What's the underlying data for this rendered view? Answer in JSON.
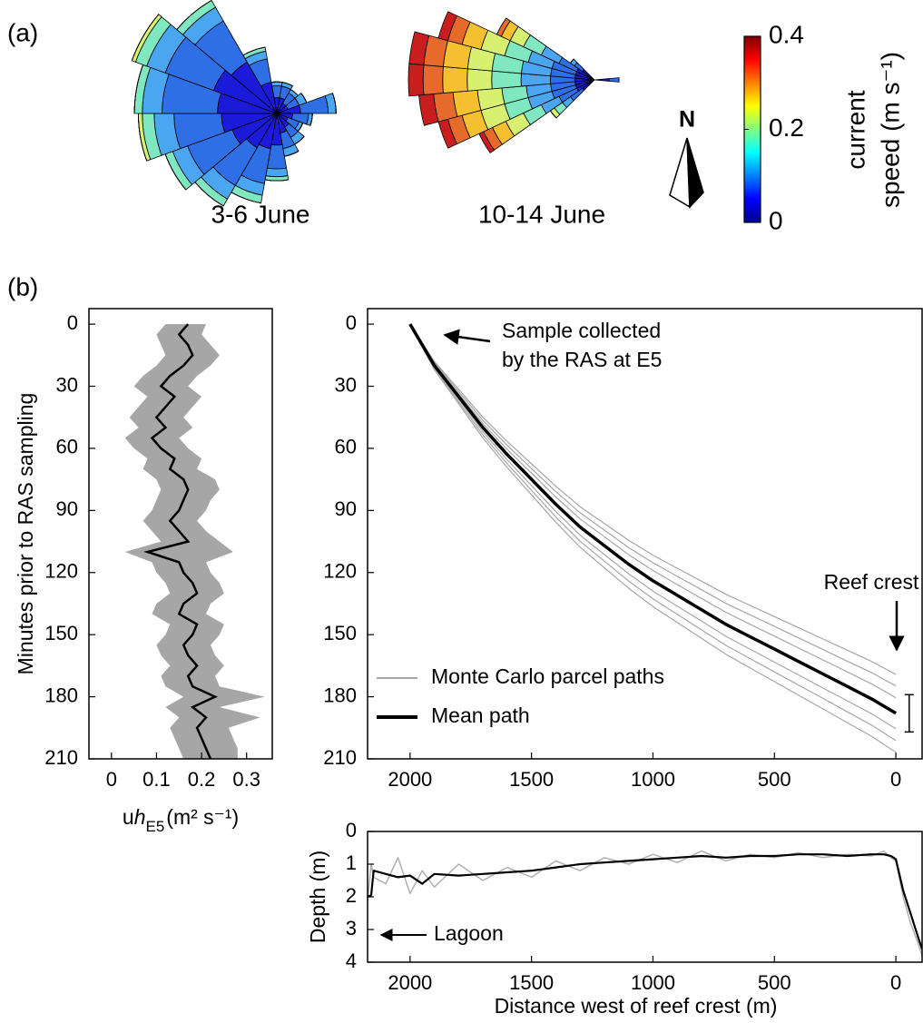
{
  "chart_data": [
    {
      "type": "rose",
      "panel_label": "(a)",
      "north_label": "N",
      "speed_bins": [
        0,
        0.05,
        0.1,
        0.15,
        0.2,
        0.25,
        0.3,
        0.35,
        0.4
      ],
      "colors": [
        "#1a1ad8",
        "#2f6fe6",
        "#4aa6f0",
        "#7fe8c0",
        "#d8f070",
        "#f5c030",
        "#e66a2a",
        "#c81e1e"
      ],
      "roses": [
        {
          "title": "3-6 June",
          "directions": [
            0,
            20,
            40,
            60,
            80,
            100,
            120,
            140,
            160,
            180,
            200,
            220,
            240,
            260,
            280,
            300,
            320,
            340
          ],
          "frequency": [
            [
              4,
              3,
              1,
              0,
              0,
              0,
              0,
              0
            ],
            [
              4,
              3,
              1,
              0,
              0,
              0,
              0,
              0
            ],
            [
              3,
              3,
              1,
              0,
              0,
              0,
              0,
              0
            ],
            [
              3,
              3,
              2,
              0,
              0,
              0,
              0,
              0
            ],
            [
              6,
              7,
              2,
              0,
              0,
              0,
              0,
              0
            ],
            [
              4,
              4,
              1,
              0,
              0,
              0,
              0,
              0
            ],
            [
              3,
              3,
              1,
              0,
              0,
              0,
              0,
              0
            ],
            [
              4,
              3,
              2,
              0,
              0,
              0,
              0,
              0
            ],
            [
              5,
              4,
              2,
              0,
              0,
              0,
              0,
              0
            ],
            [
              8,
              6,
              2,
              1,
              0,
              0,
              0,
              0
            ],
            [
              9,
              9,
              3,
              2,
              0,
              0,
              0,
              0
            ],
            [
              10,
              11,
              4,
              2,
              0,
              0,
              0,
              0
            ],
            [
              12,
              12,
              4,
              2,
              0,
              0,
              0,
              0
            ],
            [
              14,
              12,
              5,
              3,
              1,
              0,
              0,
              0
            ],
            [
              15,
              14,
              5,
              2,
              0,
              0,
              0,
              0
            ],
            [
              17,
              13,
              5,
              3,
              1,
              0,
              0,
              0
            ],
            [
              15,
              12,
              4,
              2,
              0,
              0,
              0,
              0
            ],
            [
              8,
              6,
              2,
              1,
              0,
              0,
              0,
              0
            ]
          ]
        },
        {
          "title": "10-14 June",
          "directions": [
            230,
            240,
            250,
            260,
            270,
            280,
            290,
            300,
            310,
            90
          ],
          "frequency": [
            [
              3,
              3,
              2,
              2,
              1,
              0,
              0,
              0
            ],
            [
              4,
              4,
              4,
              4,
              4,
              3,
              2,
              1
            ],
            [
              4,
              5,
              5,
              5,
              5,
              4,
              3,
              2
            ],
            [
              4,
              5,
              5,
              5,
              5,
              5,
              4,
              3
            ],
            [
              4,
              5,
              6,
              6,
              5,
              5,
              4,
              3
            ],
            [
              4,
              5,
              6,
              6,
              5,
              5,
              4,
              3
            ],
            [
              4,
              5,
              5,
              5,
              5,
              4,
              3,
              2
            ],
            [
              4,
              4,
              4,
              4,
              3,
              2,
              1,
              0
            ],
            [
              3,
              2,
              1,
              0,
              0,
              0,
              0,
              0
            ],
            [
              3,
              2,
              0,
              0,
              0,
              0,
              0,
              0
            ]
          ]
        }
      ],
      "colorbar": {
        "clim": [
          0,
          0.4
        ],
        "ticks": [
          0,
          0.2,
          0.4
        ],
        "label": [
          "current",
          "speed (m s⁻¹)"
        ],
        "colormap": [
          "#00008f",
          "#0000ff",
          "#0080ff",
          "#00ffff",
          "#80ff80",
          "#ffff00",
          "#ff8000",
          "#ff0000",
          "#800000"
        ]
      }
    },
    {
      "type": "band_line",
      "panel_label": "(b)",
      "ylabel": "Minutes prior to RAS sampling",
      "xlabel": [
        "u",
        "h",
        "E5",
        "(m² s⁻¹)"
      ],
      "xlim": [
        -0.05,
        0.357
      ],
      "xticks": [
        0,
        0.1,
        0.2,
        0.3
      ],
      "ylim": [
        210,
        -7.5
      ],
      "yticks": [
        0,
        30,
        60,
        90,
        120,
        150,
        180,
        210
      ],
      "y": [
        0,
        5,
        10,
        15,
        20,
        25,
        30,
        35,
        40,
        45,
        50,
        55,
        60,
        65,
        70,
        75,
        80,
        85,
        90,
        95,
        100,
        105,
        110,
        115,
        120,
        125,
        130,
        135,
        140,
        145,
        150,
        155,
        160,
        165,
        170,
        175,
        180,
        185,
        190,
        195,
        200,
        205,
        210
      ],
      "values": [
        0.17,
        0.15,
        0.17,
        0.18,
        0.16,
        0.13,
        0.11,
        0.14,
        0.12,
        0.1,
        0.12,
        0.09,
        0.11,
        0.14,
        0.13,
        0.16,
        0.17,
        0.16,
        0.15,
        0.13,
        0.15,
        0.17,
        0.08,
        0.15,
        0.16,
        0.18,
        0.19,
        0.16,
        0.15,
        0.19,
        0.18,
        0.16,
        0.17,
        0.19,
        0.17,
        0.18,
        0.23,
        0.18,
        0.21,
        0.19,
        0.2,
        0.21,
        0.22
      ],
      "color": "#000000",
      "band": {
        "color": "#a6a6a6",
        "lower": [
          0.12,
          0.1,
          0.11,
          0.12,
          0.1,
          0.07,
          0.05,
          0.08,
          0.06,
          0.04,
          0.06,
          0.03,
          0.05,
          0.08,
          0.07,
          0.1,
          0.11,
          0.1,
          0.09,
          0.07,
          0.09,
          0.11,
          0.03,
          0.09,
          0.1,
          0.12,
          0.13,
          0.1,
          0.09,
          0.13,
          0.12,
          0.1,
          0.11,
          0.13,
          0.11,
          0.12,
          0.16,
          0.12,
          0.15,
          0.13,
          0.14,
          0.15,
          0.16
        ],
        "upper": [
          0.21,
          0.2,
          0.22,
          0.24,
          0.22,
          0.19,
          0.17,
          0.2,
          0.18,
          0.16,
          0.18,
          0.15,
          0.17,
          0.2,
          0.19,
          0.23,
          0.24,
          0.22,
          0.21,
          0.19,
          0.21,
          0.24,
          0.27,
          0.21,
          0.22,
          0.24,
          0.25,
          0.22,
          0.21,
          0.25,
          0.24,
          0.22,
          0.23,
          0.25,
          0.23,
          0.24,
          0.34,
          0.24,
          0.33,
          0.26,
          0.27,
          0.28,
          0.28
        ]
      }
    },
    {
      "type": "line",
      "xlim": [
        2175,
        -108
      ],
      "xticks": [
        2000,
        1500,
        1000,
        500,
        0
      ],
      "ylim": [
        210,
        -7.5
      ],
      "yticks": [
        0,
        30,
        60,
        90,
        120,
        150,
        180,
        210
      ],
      "x": [
        2000,
        1950,
        1900,
        1800,
        1700,
        1600,
        1500,
        1400,
        1300,
        1200,
        1100,
        1000,
        900,
        800,
        700,
        600,
        500,
        400,
        300,
        200,
        100,
        0
      ],
      "series": [
        {
          "name": "Monte Carlo parcel paths",
          "color": "#a6a6a6",
          "values": [
            [
              0,
              9,
              18,
              31.5,
              45,
              56.7,
              67.5,
              78.3,
              88.2,
              96.3,
              104.4,
              111.6,
              117.9,
              124.2,
              130.5,
              135.9,
              141.3,
              146.7,
              152.1,
              157.5,
              162.9,
              169.2
            ],
            [
              0,
              9.3,
              18.6,
              32.6,
              46.5,
              58.6,
              69.8,
              80.9,
              91.1,
              99.5,
              107.9,
              115.3,
              121.8,
              128.3,
              134.9,
              140.4,
              146,
              151.6,
              157.2,
              162.8,
              168.3,
              174.8
            ],
            [
              0,
              9.6,
              19.2,
              33.6,
              48,
              60.5,
              72,
              83.5,
              94.1,
              102.7,
              111.4,
              119,
              125.8,
              132.5,
              139.2,
              145,
              150.7,
              156.5,
              162.2,
              168,
              173.8,
              180.5
            ],
            [
              0,
              10.4,
              20.8,
              36.4,
              52,
              65.5,
              78,
              90.5,
              101.9,
              111.3,
              120.6,
              129,
              136.2,
              143.5,
              150.8,
              157,
              163.3,
              169.5,
              175.8,
              182,
              188.2,
              195.5
            ],
            [
              0,
              10.7,
              21.4,
              37.5,
              53.5,
              67.4,
              80.3,
              93.1,
              104.9,
              114.5,
              124.1,
              132.7,
              140.2,
              147.7,
              155.2,
              161.6,
              168,
              174.4,
              180.8,
              187.3,
              193.7,
              201.2
            ],
            [
              0,
              11,
              22,
              38.5,
              55,
              69.3,
              82.5,
              95.7,
              107.8,
              117.7,
              127.6,
              136.4,
              144.1,
              151.8,
              159.5,
              166.1,
              172.7,
              179.3,
              185.9,
              192.5,
              199.1,
              206.8
            ]
          ]
        },
        {
          "name": "Mean path",
          "color": "#000000",
          "values": [
            0,
            10,
            20,
            35,
            50,
            63,
            75,
            87,
            98,
            107,
            116,
            124,
            131,
            138,
            145,
            151,
            157,
            163,
            169,
            175,
            181,
            188
          ]
        }
      ],
      "legend": "lower left",
      "annotations": [
        [
          "Sample collected",
          "by the RAS at E5"
        ],
        [
          "Reef crest"
        ]
      ],
      "error_bar": {
        "x": -55,
        "low": 179,
        "high": 197
      }
    },
    {
      "type": "line",
      "xlabel": "Distance west of reef crest (m)",
      "ylabel": "Depth (m)",
      "xlim": [
        2175,
        -108
      ],
      "xticks": [
        2000,
        1500,
        1000,
        500,
        0
      ],
      "ylim": [
        4,
        0
      ],
      "yticks": [
        0,
        1,
        2,
        3,
        4
      ],
      "x": [
        2175,
        2160,
        2150,
        2100,
        2050,
        2000,
        1950,
        1900,
        1800,
        1700,
        1600,
        1500,
        1400,
        1300,
        1200,
        1100,
        1000,
        900,
        800,
        700,
        600,
        500,
        400,
        300,
        200,
        100,
        50,
        20,
        0,
        -30,
        -60,
        -90,
        -108
      ],
      "series": [
        {
          "color": "#b0b0b0",
          "values": [
            2.1,
            1.0,
            1.4,
            1.6,
            0.8,
            1.9,
            1.2,
            1.7,
            1.0,
            1.5,
            1.1,
            1.4,
            0.9,
            1.2,
            0.8,
            1.0,
            0.7,
            0.95,
            0.6,
            0.9,
            0.7,
            0.8,
            0.65,
            0.8,
            0.7,
            0.75,
            0.6,
            0.8,
            0.9,
            2.0,
            2.8,
            3.4,
            3.8
          ]
        },
        {
          "color": "#000000",
          "values": [
            2.0,
            1.95,
            1.2,
            1.3,
            1.4,
            1.35,
            1.6,
            1.3,
            1.35,
            1.3,
            1.25,
            1.2,
            1.1,
            1.0,
            0.95,
            0.9,
            0.85,
            0.8,
            0.75,
            0.8,
            0.75,
            0.75,
            0.7,
            0.7,
            0.75,
            0.7,
            0.7,
            0.75,
            0.85,
            1.8,
            2.5,
            3.2,
            3.6
          ]
        }
      ],
      "annotations": [
        [
          "Lagoon"
        ]
      ]
    }
  ]
}
